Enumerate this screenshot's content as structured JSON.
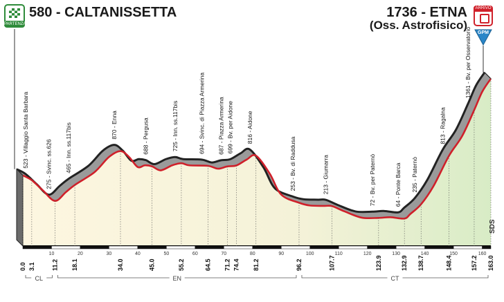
{
  "header": {
    "start": "580 - CALTANISSETTA",
    "finish": "1736 - ETNA",
    "finish_sub": "(Oss. Astrofisico)",
    "start_badge": "PARTENZA",
    "finish_badge": "ARRIVO",
    "gpm_badge": "GPM",
    "watermark": "SDS"
  },
  "colors": {
    "profile_fill": "#9a9a9a",
    "profile_edge": "#222222",
    "route_red": "#d0202a",
    "start_green": "#2e8b3a",
    "gpm_blue": "#2a86c8"
  },
  "chart_data": {
    "type": "area",
    "title": "",
    "xlabel": "",
    "ylabel": "",
    "xlim": [
      0,
      163
    ],
    "ylim": [
      0,
      1900
    ],
    "axis_ticks": [
      10,
      20,
      30,
      40,
      50,
      60,
      70,
      80,
      90,
      100,
      110,
      120,
      130,
      140,
      150,
      160
    ],
    "profile": [
      [
        0,
        580
      ],
      [
        3.1,
        523
      ],
      [
        7,
        400
      ],
      [
        11.2,
        275
      ],
      [
        15,
        380
      ],
      [
        18.1,
        465
      ],
      [
        25,
        620
      ],
      [
        30,
        800
      ],
      [
        34.0,
        870
      ],
      [
        37,
        800
      ],
      [
        40,
        680
      ],
      [
        42.5,
        700
      ],
      [
        45.0,
        688
      ],
      [
        48,
        640
      ],
      [
        52,
        700
      ],
      [
        55.2,
        725
      ],
      [
        58,
        700
      ],
      [
        64.5,
        694
      ],
      [
        68,
        660
      ],
      [
        71.2,
        687
      ],
      [
        74.4,
        699
      ],
      [
        78,
        770
      ],
      [
        81.2,
        816
      ],
      [
        86,
        600
      ],
      [
        90,
        350
      ],
      [
        96.2,
        253
      ],
      [
        100,
        220
      ],
      [
        105,
        215
      ],
      [
        107.7,
        213
      ],
      [
        112,
        150
      ],
      [
        118,
        75
      ],
      [
        123.9,
        72
      ],
      [
        128,
        80
      ],
      [
        132.9,
        64
      ],
      [
        135,
        120
      ],
      [
        138.7,
        235
      ],
      [
        143,
        450
      ],
      [
        148.4,
        813
      ],
      [
        153,
        1050
      ],
      [
        157.2,
        1361
      ],
      [
        160,
        1580
      ],
      [
        163.0,
        1736
      ]
    ],
    "km_labels": [
      "0.0",
      "3.1",
      "11.2",
      "18.1",
      "34.0",
      "45.0",
      "55.2",
      "64.5",
      "71.2",
      "74.4",
      "81.2",
      "96.2",
      "107.7",
      "123.9",
      "132.9",
      "138.7",
      "148.4",
      "157.2",
      "163.0"
    ],
    "waypoints": [
      {
        "km": 3.1,
        "label": "523 - Villaggio Santa Barbara"
      },
      {
        "km": 11.2,
        "label": "275 - Svinc. ss.626"
      },
      {
        "km": 18.1,
        "label": "465 - Inn. ss.117bis"
      },
      {
        "km": 34.0,
        "label": "870 - Enna"
      },
      {
        "km": 45.0,
        "label": "688 - Pergusa"
      },
      {
        "km": 55.2,
        "label": "725 - Inn. ss.117bis"
      },
      {
        "km": 64.5,
        "label": "694 - Svinc. di Piazza Armerina"
      },
      {
        "km": 71.2,
        "label": "687 - Piazza Armerina"
      },
      {
        "km": 74.4,
        "label": "699 - Bv. per Aidone"
      },
      {
        "km": 81.2,
        "label": "816 - Aidone"
      },
      {
        "km": 96.2,
        "label": "253 - Bv. di Raddusa"
      },
      {
        "km": 107.7,
        "label": "213 - Giumarra"
      },
      {
        "km": 123.9,
        "label": "72 - Bv. per Paternò"
      },
      {
        "km": 132.9,
        "label": "64 - Ponte Barca"
      },
      {
        "km": 138.7,
        "label": "235 - Paternò"
      },
      {
        "km": 148.4,
        "label": "813 - Ragalna"
      },
      {
        "km": 157.2,
        "label": "1361 - Bv. per Osservatorio"
      }
    ],
    "provinces": [
      {
        "code": "CL",
        "from": 0,
        "to": 11.2
      },
      {
        "code": "EN",
        "from": 11.2,
        "to": 96.2
      },
      {
        "code": "CT",
        "from": 96.2,
        "to": 163
      }
    ]
  }
}
